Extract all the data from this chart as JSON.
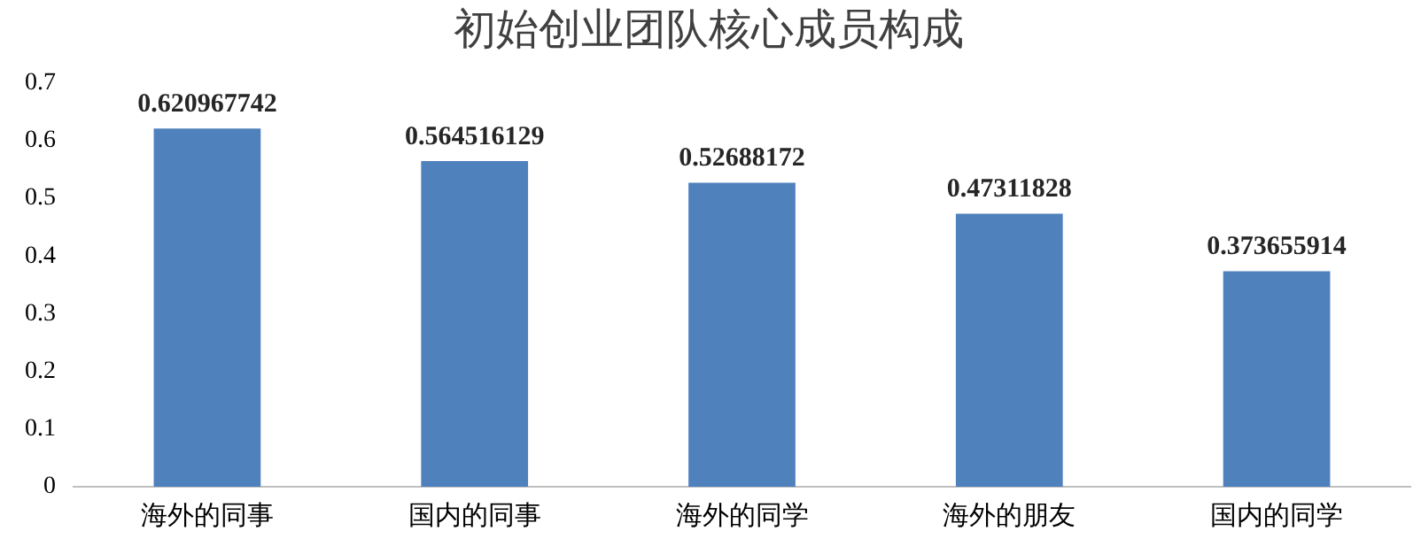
{
  "chart_data": {
    "type": "bar",
    "title": "初始创业团队核心成员构成",
    "categories": [
      "海外的同事",
      "国内的同事",
      "海外的同学",
      "海外的朋友",
      "国内的同学"
    ],
    "values": [
      0.620967742,
      0.564516129,
      0.52688172,
      0.47311828,
      0.373655914
    ],
    "color": "#4f81bd",
    "ylim": [
      0,
      0.7
    ],
    "yticks": [
      0,
      0.1,
      0.2,
      0.3,
      0.4,
      0.5,
      0.6,
      0.7
    ],
    "grid": false,
    "legend": false,
    "data_labels": true
  }
}
